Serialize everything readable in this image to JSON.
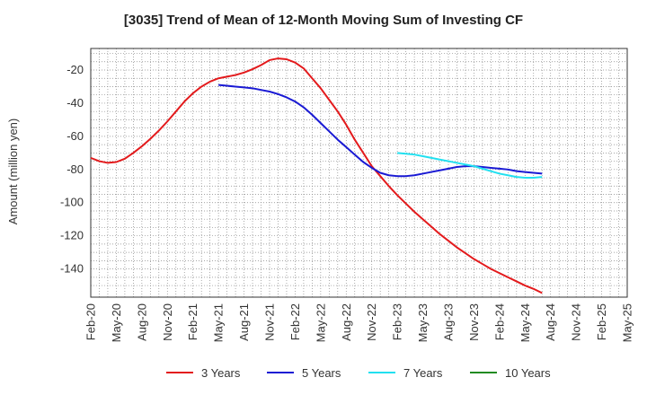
{
  "chart_data": {
    "type": "line",
    "title": "[3035]  Trend of Mean of 12-Month Moving Sum of Investing CF",
    "xlabel": "",
    "ylabel": "Amount (million yen)",
    "ylim": [
      -157,
      -7
    ],
    "yticks": [
      -20,
      -40,
      -60,
      -80,
      -100,
      -120,
      -140
    ],
    "xlim": [
      0,
      63
    ],
    "x_tick_labels": [
      "Feb-20",
      "May-20",
      "Aug-20",
      "Nov-20",
      "Feb-21",
      "May-21",
      "Aug-21",
      "Nov-21",
      "Feb-22",
      "May-22",
      "Aug-22",
      "Nov-22",
      "Feb-23",
      "May-23",
      "Aug-23",
      "Nov-23",
      "Feb-24",
      "May-24",
      "Aug-24",
      "Nov-24",
      "Feb-25",
      "May-25"
    ],
    "grid": true,
    "legend_position": "bottom",
    "series": [
      {
        "name": "3 Years",
        "color": "#e31a1c",
        "points": [
          [
            0,
            -73
          ],
          [
            1,
            -75
          ],
          [
            2,
            -76
          ],
          [
            3,
            -75.5
          ],
          [
            4,
            -73.5
          ],
          [
            5,
            -70
          ],
          [
            6,
            -66
          ],
          [
            7,
            -61.5
          ],
          [
            8,
            -56.5
          ],
          [
            9,
            -51
          ],
          [
            10,
            -45
          ],
          [
            11,
            -39
          ],
          [
            12,
            -34
          ],
          [
            13,
            -30
          ],
          [
            14,
            -27
          ],
          [
            15,
            -25
          ],
          [
            16,
            -24
          ],
          [
            17,
            -23
          ],
          [
            18,
            -21.5
          ],
          [
            19,
            -19.5
          ],
          [
            20,
            -17
          ],
          [
            21,
            -14
          ],
          [
            22,
            -13
          ],
          [
            23,
            -13.5
          ],
          [
            24,
            -15.5
          ],
          [
            25,
            -19
          ],
          [
            26,
            -25
          ],
          [
            27,
            -31
          ],
          [
            28,
            -38
          ],
          [
            29,
            -45
          ],
          [
            30,
            -53
          ],
          [
            31,
            -62
          ],
          [
            32,
            -70
          ],
          [
            33,
            -78
          ],
          [
            34,
            -84
          ],
          [
            35,
            -90
          ],
          [
            36,
            -95.5
          ],
          [
            37,
            -100.5
          ],
          [
            38,
            -105.5
          ],
          [
            39,
            -110
          ],
          [
            40,
            -114.5
          ],
          [
            41,
            -119
          ],
          [
            42,
            -123
          ],
          [
            43,
            -127
          ],
          [
            44,
            -130.5
          ],
          [
            45,
            -134
          ],
          [
            46,
            -137
          ],
          [
            47,
            -140
          ],
          [
            48,
            -142.5
          ],
          [
            49,
            -145
          ],
          [
            50,
            -147.5
          ],
          [
            51,
            -150
          ],
          [
            52,
            -152
          ],
          [
            53,
            -154.5
          ]
        ]
      },
      {
        "name": "5 Years",
        "color": "#1a1ad4",
        "points": [
          [
            15,
            -29
          ],
          [
            16,
            -29.5
          ],
          [
            17,
            -30
          ],
          [
            18,
            -30.5
          ],
          [
            19,
            -31
          ],
          [
            20,
            -32
          ],
          [
            21,
            -33
          ],
          [
            22,
            -34.5
          ],
          [
            23,
            -36.5
          ],
          [
            24,
            -39
          ],
          [
            25,
            -42.5
          ],
          [
            26,
            -47
          ],
          [
            27,
            -52
          ],
          [
            28,
            -57
          ],
          [
            29,
            -62
          ],
          [
            30,
            -66.5
          ],
          [
            31,
            -71
          ],
          [
            32,
            -75.5
          ],
          [
            33,
            -79
          ],
          [
            34,
            -82
          ],
          [
            35,
            -83.5
          ],
          [
            36,
            -84
          ],
          [
            37,
            -84
          ],
          [
            38,
            -83.5
          ],
          [
            39,
            -82.5
          ],
          [
            40,
            -81.5
          ],
          [
            41,
            -80.5
          ],
          [
            42,
            -79.5
          ],
          [
            43,
            -78.5
          ],
          [
            44,
            -78
          ],
          [
            45,
            -78
          ],
          [
            46,
            -78.5
          ],
          [
            47,
            -79
          ],
          [
            48,
            -79.5
          ],
          [
            49,
            -80
          ],
          [
            50,
            -81
          ],
          [
            51,
            -81.5
          ],
          [
            52,
            -82
          ],
          [
            53,
            -82.5
          ]
        ]
      },
      {
        "name": "7 Years",
        "color": "#22e0f0",
        "points": [
          [
            36,
            -70
          ],
          [
            37,
            -70.5
          ],
          [
            38,
            -71
          ],
          [
            39,
            -72
          ],
          [
            40,
            -73
          ],
          [
            41,
            -74
          ],
          [
            42,
            -75
          ],
          [
            43,
            -76
          ],
          [
            44,
            -77
          ],
          [
            45,
            -78
          ],
          [
            46,
            -79.5
          ],
          [
            47,
            -81
          ],
          [
            48,
            -82.5
          ],
          [
            49,
            -83.5
          ],
          [
            50,
            -84.5
          ],
          [
            51,
            -85
          ],
          [
            52,
            -85
          ],
          [
            53,
            -84.5
          ]
        ]
      },
      {
        "name": "10 Years",
        "color": "#228b22",
        "points": []
      }
    ]
  }
}
